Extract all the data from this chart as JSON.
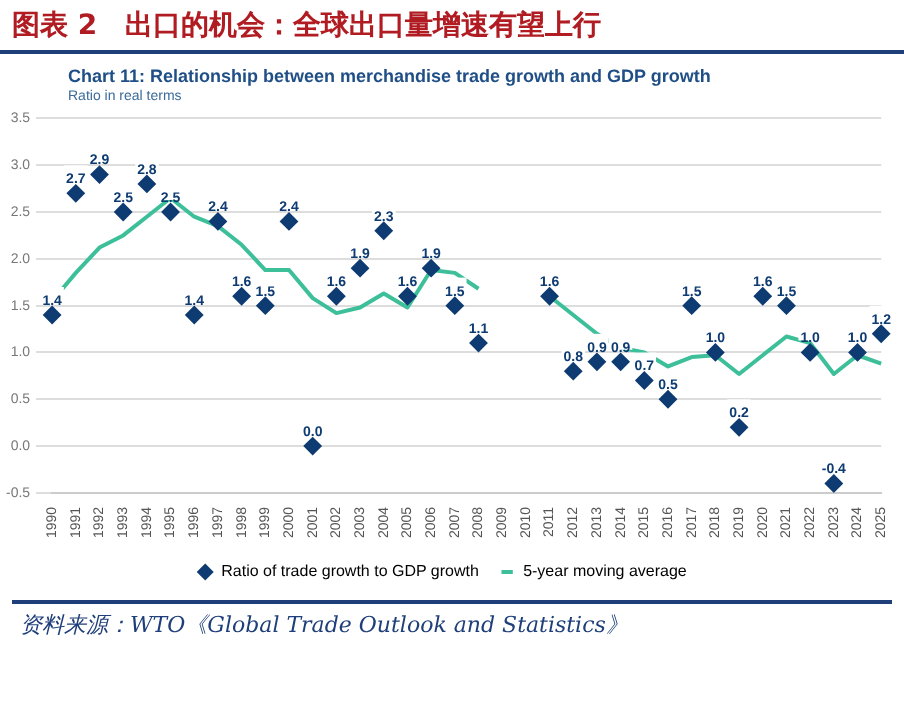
{
  "chart_data": {
    "type": "line",
    "title": "图表 2　出口的机会：全球出口量增速有望上行",
    "subtitle": "Chart 11: Relationship between merchandise trade growth and GDP growth",
    "ylabel": "Ratio in real terms",
    "categories": [
      "1990",
      "1991",
      "1992",
      "1993",
      "1994",
      "1995",
      "1996",
      "1997",
      "1998",
      "1999",
      "2000",
      "2001",
      "2002",
      "2003",
      "2004",
      "2005",
      "2006",
      "2007",
      "2008",
      "2009",
      "2010",
      "2011",
      "2012",
      "2013",
      "2014",
      "2015",
      "2016",
      "2017",
      "2018",
      "2019",
      "2020",
      "2021",
      "2022",
      "2023",
      "2024",
      "2025"
    ],
    "series": [
      {
        "name": "Ratio of trade growth to GDP growth",
        "type": "scatter",
        "color": "#0d3b72",
        "marker": "diamond",
        "values": [
          1.4,
          2.7,
          2.9,
          2.5,
          2.8,
          2.5,
          1.4,
          2.4,
          1.6,
          1.5,
          2.4,
          0.0,
          1.6,
          1.9,
          2.3,
          1.6,
          1.9,
          1.5,
          1.1,
          null,
          null,
          1.6,
          0.8,
          0.9,
          0.9,
          0.7,
          0.5,
          1.5,
          1.0,
          0.2,
          1.6,
          1.5,
          1.0,
          -0.4,
          1.0,
          1.2
        ],
        "value_labels": [
          "1.4",
          "2.7",
          "2.9",
          "2.5",
          "2.8",
          "2.5",
          "1.4",
          "2.4",
          "1.6",
          "1.5",
          "2.4",
          "0.0",
          "1.6",
          "1.9",
          "2.3",
          "1.6",
          "1.9",
          "1.5",
          "1.1",
          null,
          null,
          "1.6",
          "0.8",
          "0.9",
          "0.9",
          "0.7",
          "0.5",
          "1.5",
          "1.0",
          "0.2",
          "1.6",
          "1.5",
          "1.0",
          "-0.4",
          "1.0",
          "1.2"
        ]
      },
      {
        "name": "5-year moving average",
        "type": "line",
        "color": "#3dbf9a",
        "marker": "none",
        "values": [
          1.55,
          1.85,
          2.12,
          2.25,
          2.45,
          2.65,
          2.45,
          2.35,
          2.15,
          1.88,
          1.88,
          1.58,
          1.42,
          1.48,
          1.63,
          1.48,
          1.88,
          1.85,
          1.68,
          null,
          null,
          1.6,
          1.4,
          1.2,
          1.05,
          1.0,
          0.85,
          0.95,
          0.97,
          0.77,
          0.97,
          1.17,
          1.1,
          0.77,
          0.97,
          0.88
        ]
      }
    ],
    "ylim": [
      -0.5,
      3.5
    ],
    "yticks": [
      {
        "value": -0.5,
        "label": "-0.5"
      },
      {
        "value": 0,
        "label": "0.0"
      },
      {
        "value": 0.5,
        "label": "0.5"
      },
      {
        "value": 1,
        "label": "1.0"
      },
      {
        "value": 1.5,
        "label": "1.5"
      },
      {
        "value": 2,
        "label": "2.0"
      },
      {
        "value": 2.5,
        "label": "2.5"
      },
      {
        "value": 3,
        "label": "3.0"
      },
      {
        "value": 3.5,
        "label": "3.5"
      }
    ],
    "grid": "y",
    "legend": "bottom",
    "line_style": "solid",
    "annotations": [
      "资料来源：WTO《Global Trade Outlook and Statistics》"
    ]
  }
}
